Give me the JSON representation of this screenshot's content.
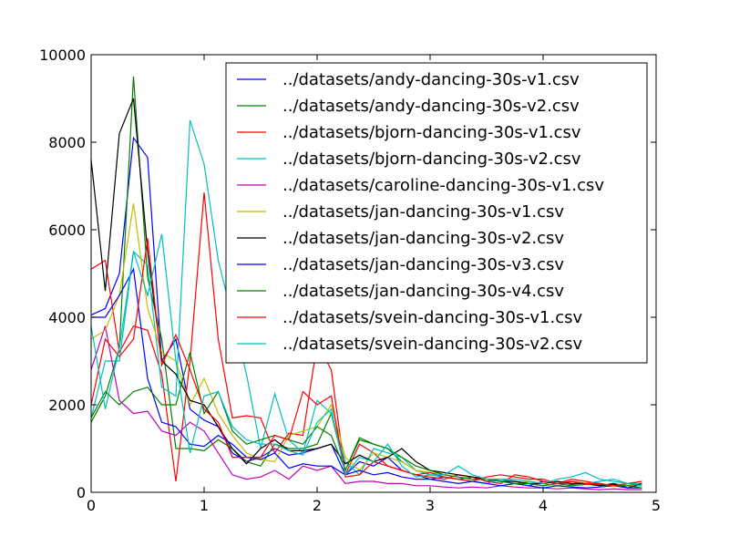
{
  "chart_data": {
    "type": "line",
    "title": "",
    "xlabel": "",
    "ylabel": "",
    "xlim": [
      0,
      5
    ],
    "ylim": [
      0,
      10000
    ],
    "xticks": [
      0,
      1,
      2,
      3,
      4,
      5
    ],
    "yticks": [
      0,
      2000,
      4000,
      6000,
      8000,
      10000
    ],
    "grid": false,
    "legend_position": "top-right",
    "x": [
      0,
      0.125,
      0.25,
      0.375,
      0.5,
      0.625,
      0.75,
      0.875,
      1,
      1.125,
      1.25,
      1.375,
      1.5,
      1.625,
      1.75,
      1.875,
      2,
      2.125,
      2.25,
      2.375,
      2.5,
      2.625,
      2.75,
      2.875,
      3,
      3.125,
      3.25,
      3.375,
      3.5,
      3.625,
      3.75,
      3.875,
      4,
      4.125,
      4.25,
      4.375,
      4.5,
      4.625,
      4.75,
      4.875
    ],
    "series": [
      {
        "name": "../datasets/andy-dancing-30s-v1.csv",
        "color": "#0000ff",
        "values": [
          4050,
          4200,
          5000,
          8100,
          7650,
          3000,
          3500,
          1900,
          1650,
          1500,
          900,
          700,
          800,
          1000,
          850,
          900,
          1000,
          1100,
          400,
          700,
          600,
          800,
          500,
          400,
          300,
          350,
          300,
          350,
          300,
          250,
          200,
          150,
          250,
          200,
          180,
          200,
          150,
          180,
          150,
          150
        ]
      },
      {
        "name": "../datasets/andy-dancing-30s-v2.csv",
        "color": "#008000",
        "values": [
          1600,
          2200,
          3300,
          9500,
          4900,
          3500,
          1000,
          1000,
          950,
          1200,
          1000,
          700,
          600,
          1100,
          1000,
          1000,
          1100,
          1800,
          500,
          1250,
          1100,
          1000,
          700,
          500,
          400,
          350,
          300,
          350,
          250,
          300,
          250,
          200,
          150,
          200,
          250,
          200,
          180,
          150,
          200,
          150
        ]
      },
      {
        "name": "../datasets/bjorn-dancing-30s-v1.csv",
        "color": "#ff0000",
        "values": [
          5100,
          5300,
          3200,
          3800,
          3700,
          2700,
          250,
          3000,
          6850,
          3500,
          1700,
          1750,
          1700,
          900,
          1350,
          1300,
          3400,
          2800,
          400,
          1100,
          900,
          600,
          500,
          400,
          350,
          300,
          400,
          350,
          250,
          200,
          400,
          350,
          250,
          200,
          300,
          250,
          200,
          150,
          150,
          200
        ]
      },
      {
        "name": "../datasets/bjorn-dancing-30s-v2.csv",
        "color": "#00bfbf",
        "values": [
          1700,
          3000,
          3000,
          5500,
          5200,
          2400,
          2200,
          8500,
          7500,
          5300,
          4000,
          2700,
          1000,
          2250,
          1200,
          900,
          2100,
          1800,
          700,
          400,
          1000,
          900,
          800,
          500,
          400,
          350,
          300,
          250,
          200,
          300,
          250,
          200,
          200,
          250,
          200,
          200,
          250,
          300,
          200,
          200
        ]
      },
      {
        "name": "../datasets/caroline-dancing-30s-v1.csv",
        "color": "#bf00bf",
        "values": [
          2800,
          3800,
          2100,
          1800,
          1850,
          1400,
          1300,
          1600,
          1400,
          900,
          400,
          300,
          350,
          500,
          300,
          600,
          500,
          600,
          200,
          250,
          250,
          200,
          200,
          150,
          150,
          120,
          100,
          120,
          100,
          150,
          120,
          100,
          100,
          80,
          100,
          80,
          60,
          80,
          60,
          60
        ]
      },
      {
        "name": "../datasets/jan-dancing-30s-v1.csv",
        "color": "#bfbf00",
        "values": [
          3500,
          3700,
          4500,
          6600,
          4200,
          3200,
          3000,
          2000,
          2600,
          1800,
          1300,
          900,
          750,
          700,
          1300,
          1400,
          1500,
          2000,
          800,
          500,
          900,
          800,
          700,
          500,
          450,
          400,
          350,
          300,
          300,
          250,
          200,
          250,
          200,
          150,
          200,
          180,
          150,
          200,
          150,
          150
        ]
      },
      {
        "name": "../datasets/jan-dancing-30s-v2.csv",
        "color": "#000000",
        "values": [
          7600,
          4600,
          8200,
          9000,
          5500,
          3000,
          2700,
          2100,
          2000,
          1500,
          1000,
          650,
          1000,
          1200,
          950,
          950,
          1000,
          1100,
          650,
          850,
          700,
          800,
          1000,
          700,
          500,
          450,
          400,
          350,
          300,
          250,
          250,
          200,
          200,
          250,
          200,
          200,
          150,
          200,
          100,
          200
        ]
      },
      {
        "name": "../datasets/jan-dancing-30s-v3.csv",
        "color": "#0000ff",
        "values": [
          4000,
          4000,
          4500,
          5100,
          2600,
          1600,
          1500,
          1100,
          1050,
          1300,
          1100,
          800,
          750,
          900,
          550,
          650,
          600,
          600,
          400,
          500,
          400,
          450,
          350,
          300,
          300,
          250,
          200,
          250,
          200,
          150,
          200,
          150,
          100,
          150,
          120,
          100,
          120,
          150,
          100,
          100
        ]
      },
      {
        "name": "../datasets/jan-dancing-30s-v4.csv",
        "color": "#008000",
        "values": [
          1700,
          2300,
          2000,
          2300,
          2400,
          2000,
          2000,
          3200,
          1800,
          2300,
          1400,
          1100,
          1200,
          1300,
          1200,
          1100,
          1500,
          1300,
          500,
          1200,
          1100,
          1000,
          800,
          600,
          500,
          400,
          350,
          300,
          300,
          250,
          200,
          200,
          150,
          200,
          150,
          180,
          200,
          150,
          150,
          100
        ]
      },
      {
        "name": "../datasets/svein-dancing-30s-v1.csv",
        "color": "#ff0000",
        "values": [
          2000,
          3500,
          3100,
          3500,
          5800,
          2900,
          3600,
          2800,
          1900,
          1600,
          800,
          800,
          800,
          1300,
          1200,
          2300,
          2000,
          2200,
          350,
          400,
          700,
          600,
          500,
          400,
          450,
          350,
          300,
          250,
          350,
          400,
          350,
          300,
          300,
          200,
          250,
          200,
          200,
          150,
          200,
          250
        ]
      },
      {
        "name": "../datasets/svein-dancing-30s-v2.csv",
        "color": "#00bfbf",
        "values": [
          3800,
          1900,
          3300,
          5500,
          4500,
          5900,
          3000,
          900,
          2200,
          2300,
          1500,
          1200,
          1100,
          1100,
          950,
          850,
          1600,
          1900,
          400,
          800,
          700,
          1100,
          600,
          350,
          400,
          400,
          600,
          400,
          300,
          300,
          300,
          250,
          200,
          300,
          350,
          450,
          300,
          250,
          200,
          150
        ]
      }
    ]
  }
}
